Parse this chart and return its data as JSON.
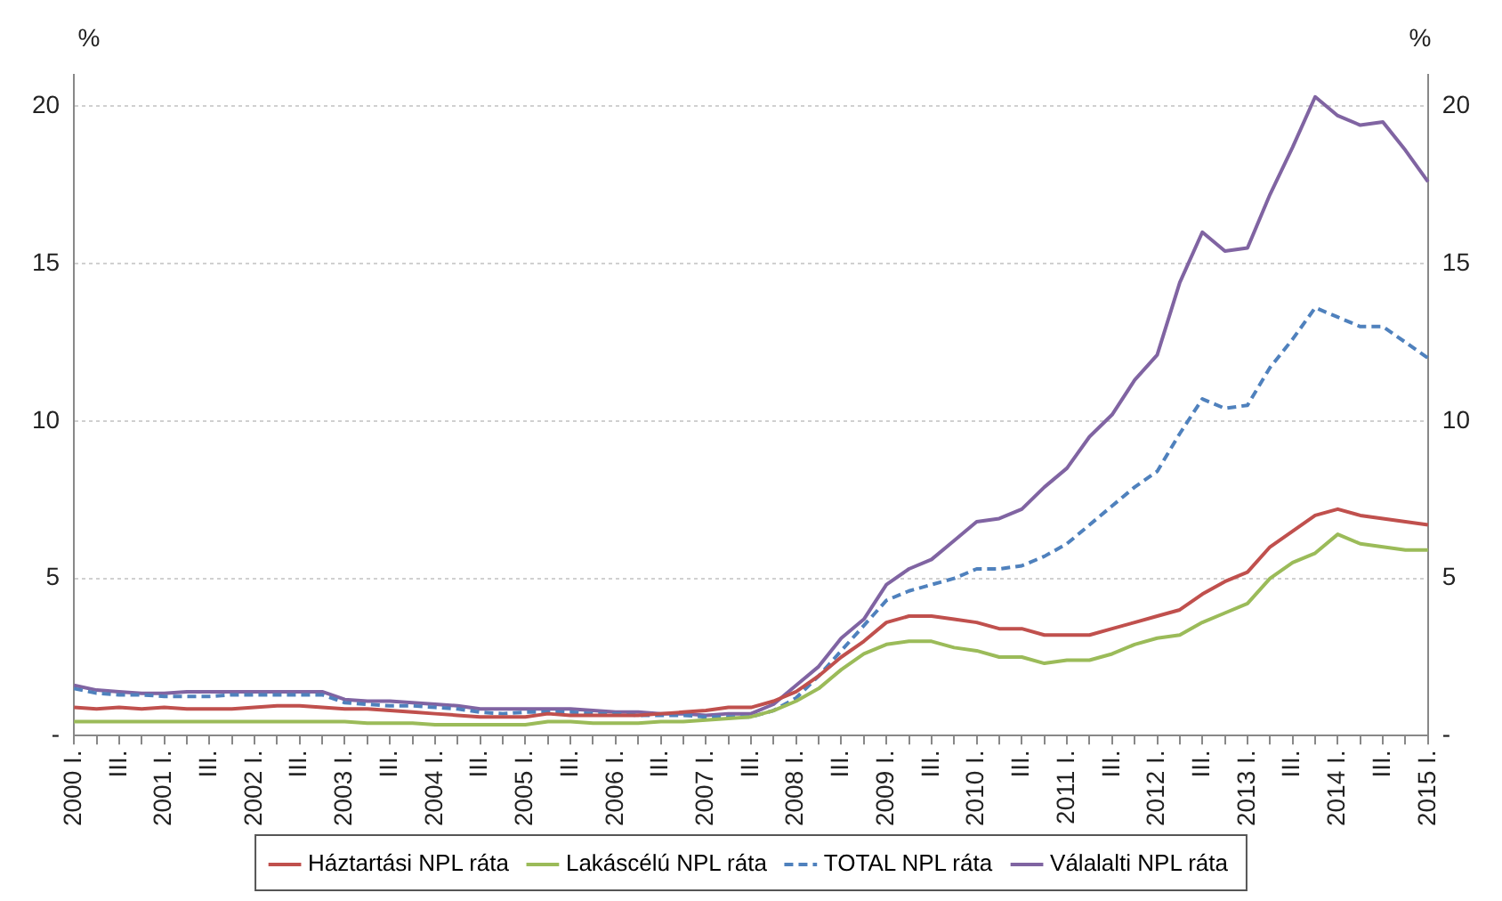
{
  "chart_data": {
    "type": "line",
    "ylabel": "%",
    "y2label": "%",
    "categories": [
      "2000 I.",
      null,
      "III.",
      null,
      "2001 I.",
      null,
      "III.",
      null,
      "2002 I.",
      null,
      "III.",
      null,
      "2003 I.",
      null,
      "III.",
      null,
      "2004 I.",
      null,
      "III.",
      null,
      "2005 I.",
      null,
      "III.",
      null,
      "2006 I.",
      null,
      "III.",
      null,
      "2007 I.",
      null,
      "III.",
      null,
      "2008 I.",
      null,
      "III.",
      null,
      "2009 I.",
      null,
      "III.",
      null,
      "2010 I.",
      null,
      "III.",
      null,
      "2011 I.",
      null,
      "III.",
      null,
      "2012 I.",
      null,
      "III.",
      null,
      "2013 I.",
      null,
      "III.",
      null,
      "2014 I.",
      null,
      "III.",
      null,
      "2015 I."
    ],
    "series": [
      {
        "name": "Háztartási NPL ráta",
        "color": "#c0504d",
        "line_style": "solid",
        "values": [
          0.9,
          0.85,
          0.9,
          0.85,
          0.9,
          0.85,
          0.85,
          0.85,
          0.9,
          0.95,
          0.95,
          0.9,
          0.85,
          0.85,
          0.8,
          0.75,
          0.7,
          0.65,
          0.6,
          0.6,
          0.6,
          0.7,
          0.65,
          0.65,
          0.65,
          0.65,
          0.7,
          0.75,
          0.8,
          0.9,
          0.9,
          1.1,
          1.4,
          1.9,
          2.5,
          3.0,
          3.6,
          3.8,
          3.8,
          3.7,
          3.6,
          3.4,
          3.4,
          3.2,
          3.2,
          3.2,
          3.4,
          3.6,
          3.8,
          4.0,
          4.5,
          4.9,
          5.2,
          6.0,
          6.5,
          7.0,
          7.2,
          7.0,
          6.9,
          6.8,
          6.7
        ]
      },
      {
        "name": "Lakáscélú NPL ráta",
        "color": "#9bbb59",
        "line_style": "solid",
        "values": [
          0.45,
          0.45,
          0.45,
          0.45,
          0.45,
          0.45,
          0.45,
          0.45,
          0.45,
          0.45,
          0.45,
          0.45,
          0.45,
          0.4,
          0.4,
          0.4,
          0.35,
          0.35,
          0.35,
          0.35,
          0.35,
          0.45,
          0.45,
          0.4,
          0.4,
          0.4,
          0.45,
          0.45,
          0.5,
          0.55,
          0.6,
          0.8,
          1.1,
          1.5,
          2.1,
          2.6,
          2.9,
          3.0,
          3.0,
          2.8,
          2.7,
          2.5,
          2.5,
          2.3,
          2.4,
          2.4,
          2.6,
          2.9,
          3.1,
          3.2,
          3.6,
          3.9,
          4.2,
          5.0,
          5.5,
          5.8,
          6.4,
          6.1,
          6.0,
          5.9,
          5.9
        ]
      },
      {
        "name": "TOTAL NPL ráta",
        "color": "#4f81bd",
        "line_style": "dashed",
        "values": [
          1.5,
          1.35,
          1.3,
          1.3,
          1.25,
          1.25,
          1.25,
          1.3,
          1.3,
          1.3,
          1.3,
          1.3,
          1.05,
          1.0,
          0.95,
          0.95,
          0.9,
          0.85,
          0.75,
          0.7,
          0.75,
          0.75,
          0.75,
          0.7,
          0.7,
          0.65,
          0.65,
          0.65,
          0.6,
          0.6,
          0.6,
          0.8,
          1.2,
          1.9,
          2.7,
          3.5,
          4.3,
          4.6,
          4.8,
          5.0,
          5.3,
          5.3,
          5.4,
          5.7,
          6.1,
          6.7,
          7.3,
          7.9,
          8.4,
          9.6,
          10.7,
          10.4,
          10.5,
          11.7,
          12.6,
          13.6,
          13.3,
          13.0,
          13.0,
          12.5,
          12.0
        ]
      },
      {
        "name": "Válalalti NPL ráta",
        "color": "#8064a2",
        "line_style": "solid",
        "values": [
          1.6,
          1.45,
          1.4,
          1.35,
          1.35,
          1.4,
          1.4,
          1.4,
          1.4,
          1.4,
          1.4,
          1.4,
          1.15,
          1.1,
          1.1,
          1.05,
          1.0,
          0.95,
          0.85,
          0.85,
          0.85,
          0.85,
          0.85,
          0.8,
          0.75,
          0.75,
          0.7,
          0.7,
          0.65,
          0.7,
          0.7,
          1.0,
          1.6,
          2.2,
          3.1,
          3.7,
          4.8,
          5.3,
          5.6,
          6.2,
          6.8,
          6.9,
          7.2,
          7.9,
          8.5,
          9.5,
          10.2,
          11.3,
          12.1,
          14.4,
          16.0,
          15.4,
          15.5,
          17.2,
          18.7,
          20.3,
          19.7,
          19.4,
          19.5,
          18.6,
          17.6
        ]
      }
    ],
    "ylim": [
      0,
      21
    ],
    "yticks": [
      {
        "value": 0,
        "label": "-"
      },
      5,
      10,
      15,
      20
    ],
    "y2lim": [
      0,
      21
    ],
    "y2ticks": [
      {
        "value": 0,
        "label": "-"
      },
      5,
      10,
      15,
      20
    ],
    "grid": "y",
    "legend": "bottom",
    "marker": "none"
  }
}
